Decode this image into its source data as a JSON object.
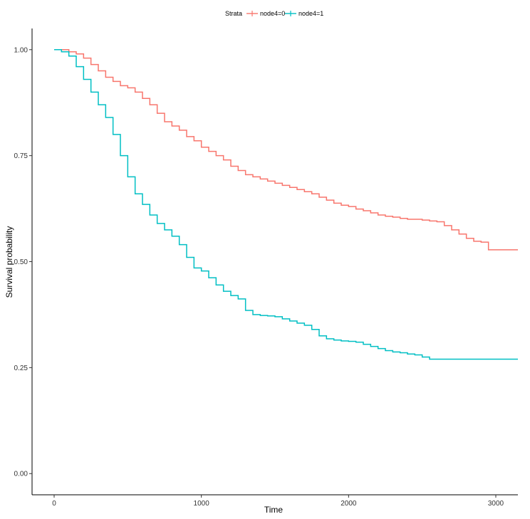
{
  "chart_data": {
    "type": "line",
    "title": "",
    "xlabel": "Time",
    "ylabel": "Survival probability",
    "xlim": [
      -150,
      3150
    ],
    "ylim": [
      -0.05,
      1.05
    ],
    "x_ticks": [
      0,
      1000,
      2000,
      3000
    ],
    "x_tick_labels": [
      "0",
      "1000",
      "2000",
      "3000"
    ],
    "y_ticks": [
      0,
      0.25,
      0.5,
      0.75,
      1.0
    ],
    "y_tick_labels": [
      "0.00",
      "0.25",
      "0.50",
      "0.75",
      "1.00"
    ],
    "grid": false,
    "legend": {
      "title": "Strata",
      "position": "top-center"
    },
    "series": [
      {
        "name": "node4=0",
        "color": "#F8766D",
        "step": true,
        "x": [
          0,
          100,
          150,
          200,
          250,
          300,
          350,
          400,
          450,
          500,
          550,
          600,
          650,
          700,
          750,
          800,
          850,
          900,
          950,
          1000,
          1050,
          1100,
          1150,
          1200,
          1250,
          1300,
          1350,
          1400,
          1450,
          1500,
          1550,
          1600,
          1650,
          1700,
          1750,
          1800,
          1850,
          1900,
          1950,
          2000,
          2050,
          2100,
          2150,
          2200,
          2250,
          2300,
          2350,
          2400,
          2450,
          2500,
          2550,
          2600,
          2650,
          2700,
          2750,
          2800,
          2850,
          2900,
          2950,
          3000,
          3150
        ],
        "y": [
          1.0,
          0.995,
          0.99,
          0.98,
          0.965,
          0.95,
          0.935,
          0.925,
          0.915,
          0.91,
          0.9,
          0.885,
          0.87,
          0.85,
          0.83,
          0.82,
          0.81,
          0.795,
          0.785,
          0.77,
          0.76,
          0.75,
          0.74,
          0.725,
          0.715,
          0.705,
          0.7,
          0.695,
          0.69,
          0.685,
          0.68,
          0.675,
          0.67,
          0.665,
          0.66,
          0.652,
          0.645,
          0.638,
          0.633,
          0.63,
          0.624,
          0.62,
          0.615,
          0.61,
          0.607,
          0.605,
          0.602,
          0.6,
          0.6,
          0.598,
          0.596,
          0.594,
          0.585,
          0.575,
          0.565,
          0.555,
          0.548,
          0.546,
          0.528,
          0.528,
          0.528
        ]
      },
      {
        "name": "node4=1",
        "color": "#00BFC4",
        "step": true,
        "x": [
          0,
          50,
          100,
          150,
          200,
          250,
          300,
          350,
          400,
          450,
          500,
          550,
          600,
          650,
          700,
          750,
          800,
          850,
          900,
          950,
          1000,
          1050,
          1100,
          1150,
          1200,
          1250,
          1300,
          1350,
          1400,
          1450,
          1500,
          1550,
          1600,
          1650,
          1700,
          1750,
          1800,
          1850,
          1900,
          1950,
          2000,
          2050,
          2100,
          2150,
          2200,
          2250,
          2300,
          2350,
          2400,
          2450,
          2500,
          2550,
          2600,
          3150
        ],
        "y": [
          1.0,
          0.995,
          0.985,
          0.96,
          0.93,
          0.9,
          0.87,
          0.84,
          0.8,
          0.75,
          0.7,
          0.66,
          0.635,
          0.61,
          0.59,
          0.575,
          0.56,
          0.54,
          0.51,
          0.485,
          0.478,
          0.462,
          0.445,
          0.43,
          0.42,
          0.412,
          0.385,
          0.375,
          0.373,
          0.372,
          0.37,
          0.365,
          0.36,
          0.355,
          0.35,
          0.34,
          0.325,
          0.318,
          0.315,
          0.313,
          0.312,
          0.31,
          0.305,
          0.3,
          0.295,
          0.29,
          0.287,
          0.285,
          0.282,
          0.28,
          0.275,
          0.27,
          0.27,
          0.27
        ]
      }
    ]
  }
}
